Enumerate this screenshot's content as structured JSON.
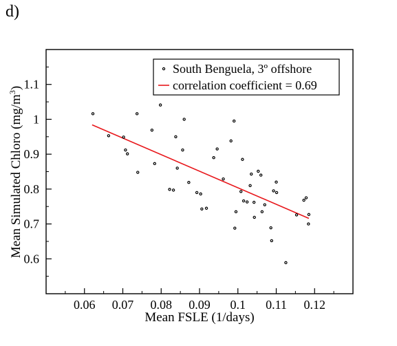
{
  "panel_label": "d)",
  "chart_data": {
    "type": "scatter",
    "xlabel": "Mean FSLE (1/days)",
    "ylabel": "Mean Simulated Chloro (mg/m",
    "ylabel_sup": "3",
    "ylabel_tail": ")",
    "xlim": [
      0.05,
      0.13
    ],
    "ylim": [
      0.5,
      1.2
    ],
    "xticks": [
      0.06,
      0.07,
      0.08,
      0.09,
      0.1,
      0.11,
      0.12
    ],
    "xtick_labels": [
      "0.06",
      "0.07",
      "0.08",
      "0.09",
      "0.1",
      "0.11",
      "0.12"
    ],
    "yticks": [
      0.6,
      0.7,
      0.8,
      0.9,
      1.0,
      1.1
    ],
    "ytick_labels": [
      "0.6",
      "0.7",
      "0.8",
      "0.9",
      "1",
      "1.1"
    ],
    "grid": false,
    "legend_position": "top-right",
    "series": [
      {
        "name": "South Benguela, 3º offshore",
        "kind": "scatter",
        "color": "#000000",
        "points": [
          [
            0.0622,
            1.016
          ],
          [
            0.0663,
            0.953
          ],
          [
            0.0702,
            0.949
          ],
          [
            0.0707,
            0.912
          ],
          [
            0.0712,
            0.901
          ],
          [
            0.0737,
            1.016
          ],
          [
            0.0739,
            0.848
          ],
          [
            0.0776,
            0.969
          ],
          [
            0.0783,
            0.873
          ],
          [
            0.0798,
            1.041
          ],
          [
            0.0822,
            0.799
          ],
          [
            0.0832,
            0.797
          ],
          [
            0.0838,
            0.95
          ],
          [
            0.0842,
            0.86
          ],
          [
            0.0856,
            0.912
          ],
          [
            0.086,
            1.0
          ],
          [
            0.0872,
            0.819
          ],
          [
            0.0893,
            0.79
          ],
          [
            0.0903,
            0.786
          ],
          [
            0.0906,
            0.743
          ],
          [
            0.0918,
            0.745
          ],
          [
            0.0937,
            0.89
          ],
          [
            0.0946,
            0.915
          ],
          [
            0.0962,
            0.829
          ],
          [
            0.0982,
            0.938
          ],
          [
            0.099,
            0.995
          ],
          [
            0.0992,
            0.688
          ],
          [
            0.0995,
            0.735
          ],
          [
            0.1008,
            0.793
          ],
          [
            0.1012,
            0.885
          ],
          [
            0.1015,
            0.766
          ],
          [
            0.1024,
            0.763
          ],
          [
            0.1032,
            0.81
          ],
          [
            0.1035,
            0.843
          ],
          [
            0.1042,
            0.762
          ],
          [
            0.1043,
            0.719
          ],
          [
            0.1053,
            0.851
          ],
          [
            0.106,
            0.84
          ],
          [
            0.1063,
            0.735
          ],
          [
            0.107,
            0.755
          ],
          [
            0.1086,
            0.689
          ],
          [
            0.1088,
            0.652
          ],
          [
            0.1093,
            0.795
          ],
          [
            0.11,
            0.82
          ],
          [
            0.1101,
            0.79
          ],
          [
            0.1125,
            0.589
          ],
          [
            0.1153,
            0.726
          ],
          [
            0.1172,
            0.768
          ],
          [
            0.1178,
            0.775
          ],
          [
            0.1184,
            0.7
          ],
          [
            0.1185,
            0.727
          ]
        ]
      },
      {
        "name": "correlation coefficient = 0.69",
        "kind": "line",
        "color": "#e8171b",
        "points": [
          [
            0.062,
            0.984
          ],
          [
            0.1185,
            0.716
          ]
        ]
      }
    ]
  }
}
